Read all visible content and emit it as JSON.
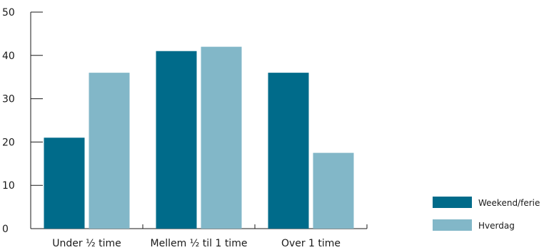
{
  "chart_data": {
    "type": "bar",
    "title": "",
    "xlabel": "",
    "ylabel": "",
    "categories": [
      "Under ½ time",
      "Mellem ½ til 1 time",
      "Over 1 time"
    ],
    "series": [
      {
        "name": "Weekend/ferie",
        "color": "#006b8a",
        "values": [
          21,
          41,
          36
        ]
      },
      {
        "name": "Hverdag",
        "color": "#82b7c8",
        "values": [
          36,
          42,
          17.5
        ]
      }
    ],
    "ylim": [
      0,
      50
    ],
    "yticks": [
      0,
      10,
      20,
      30,
      40,
      50
    ],
    "grid": false,
    "legend_position": "bottom-right"
  }
}
